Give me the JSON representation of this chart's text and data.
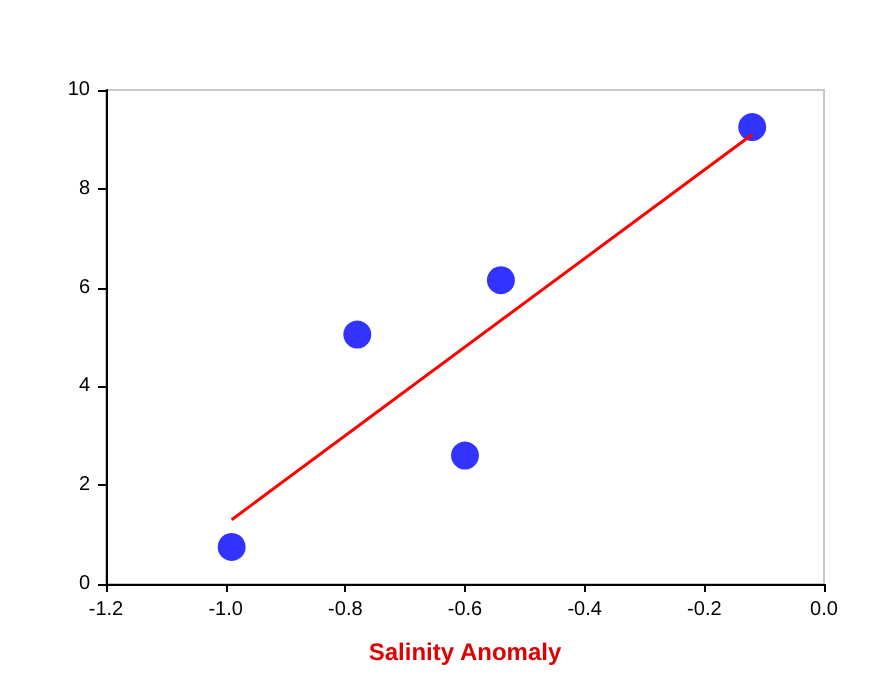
{
  "chart_data": {
    "type": "scatter",
    "xlabel": "Salinity Anomaly",
    "series": [
      {
        "color": "#0000ff",
        "x": [
          -0.99,
          -0.78,
          -0.6,
          -0.54,
          -0.12
        ],
        "values": [
          0.75,
          5.05,
          2.6,
          6.15,
          9.25
        ]
      },
      {
        "type": "line",
        "color": "#ff0000",
        "x": [
          -0.99,
          -0.12
        ],
        "values": [
          1.3,
          9.1
        ]
      }
    ],
    "xlim": [
      -1.2,
      0
    ],
    "xticks": [
      -1.2,
      {
        "value": -1,
        "label": "-1.0"
      },
      -0.8,
      -0.6,
      -0.4,
      -0.2,
      {
        "value": 0,
        "label": "0.0"
      }
    ],
    "ylim": [
      0,
      10
    ],
    "yticks": [
      0,
      2,
      4,
      6,
      8,
      10
    ],
    "grid": false
  }
}
